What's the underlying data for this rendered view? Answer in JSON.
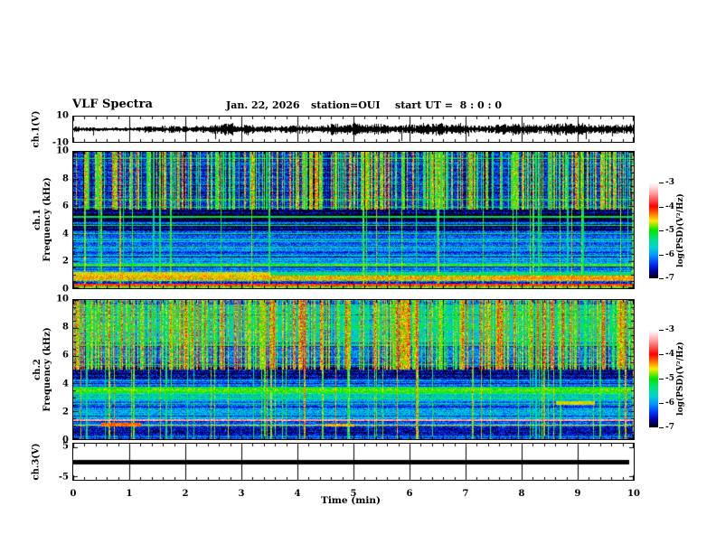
{
  "title": {
    "main": "VLF Spectra",
    "date": "Jan. 22, 2026",
    "station": "station=OUI",
    "start_ut": "start UT =  8 : 0 : 0"
  },
  "axes": {
    "time": {
      "label": "Time (min)",
      "min": 0,
      "max": 10,
      "ticks": [
        "0",
        "1",
        "2",
        "3",
        "4",
        "5",
        "6",
        "7",
        "8",
        "9",
        "10"
      ],
      "minor_per_major": 5
    },
    "ch1v": {
      "label": "ch.1(V)",
      "tick_top": "10",
      "tick_bottom": "-10",
      "range": [
        -10,
        10
      ]
    },
    "ch1f": {
      "label_ch": "ch.1",
      "label_freq": "Frequency (kHz)",
      "ticks": [
        "10",
        "8",
        "6",
        "4",
        "2",
        "0"
      ],
      "range_khz": [
        0,
        10
      ]
    },
    "ch2f": {
      "label_ch": "ch.2",
      "label_freq": "Frequency (kHz)",
      "ticks": [
        "10",
        "8",
        "6",
        "4",
        "2",
        "0"
      ],
      "range_khz": [
        0,
        10
      ]
    },
    "ch3v": {
      "label": "ch.3(V)",
      "tick_top": "5",
      "tick_bottom": "-5",
      "range": [
        -5,
        5
      ]
    }
  },
  "colormap": {
    "label": "log(PSD)(V²/Hz)",
    "ticks": [
      "-3",
      "-4",
      "-5",
      "-6",
      "-7"
    ],
    "value_range": [
      -7,
      -3
    ],
    "stops": [
      [
        0,
        "#ffffff"
      ],
      [
        0.05,
        "#ffdcdc"
      ],
      [
        0.12,
        "#ff9696"
      ],
      [
        0.25,
        "#ff0000"
      ],
      [
        0.33,
        "#ff7800"
      ],
      [
        0.4,
        "#ffeb00"
      ],
      [
        0.5,
        "#00e600"
      ],
      [
        0.6,
        "#00e18c"
      ],
      [
        0.68,
        "#00d2d2"
      ],
      [
        0.76,
        "#0096ff"
      ],
      [
        0.84,
        "#003cff"
      ],
      [
        0.92,
        "#0000aa"
      ],
      [
        1,
        "#000000"
      ]
    ]
  },
  "chart_data": [
    {
      "name": "ch1_waveform",
      "type": "line",
      "x_range_min": [
        0,
        10
      ],
      "y_range_V": [
        -10,
        10
      ],
      "baseline_V": 0,
      "noise_amp_V": 2.2,
      "seed": 77,
      "spikes": [
        {
          "t": 0.35,
          "v": -5
        },
        {
          "t": 2.53,
          "v": -8
        },
        {
          "t": 3.12,
          "v": -5
        },
        {
          "t": 5.43,
          "v": 4.5
        },
        {
          "t": 5.85,
          "v": -9
        },
        {
          "t": 7.05,
          "v": -6
        },
        {
          "t": 9.15,
          "v": -8
        },
        {
          "t": 9.62,
          "v": -6
        }
      ]
    },
    {
      "name": "ch1_spectrogram",
      "type": "heatmap",
      "x_range_min": [
        0,
        10
      ],
      "f_range_khz": [
        0,
        10
      ],
      "z_range_logpsd": [
        -7,
        -3
      ],
      "seed": 12345,
      "speckle": 0.8,
      "row_jitter": 0.5,
      "streaks": {
        "density": 0.45,
        "full_prob": 0.16,
        "level": -5.0,
        "f_min_khz": 5.8
      },
      "bands": [
        {
          "f0": 0.0,
          "f1": 0.15,
          "v": -5.2
        },
        {
          "f0": 0.15,
          "f1": 0.3,
          "v": -4.0
        },
        {
          "f0": 0.3,
          "f1": 0.55,
          "v": -6.3
        },
        {
          "f0": 0.55,
          "f1": 0.95,
          "v": -4.7
        },
        {
          "f0": 0.95,
          "f1": 1.25,
          "v": -5.0
        },
        {
          "f0": 1.25,
          "f1": 1.6,
          "v": -6.2
        },
        {
          "f0": 1.6,
          "f1": 1.85,
          "v": -5.2
        },
        {
          "f0": 1.85,
          "f1": 2.3,
          "v": -5.9
        },
        {
          "f0": 2.3,
          "f1": 3.4,
          "v": -6.1
        },
        {
          "f0": 3.4,
          "f1": 3.7,
          "v": -5.7
        },
        {
          "f0": 3.7,
          "f1": 4.3,
          "v": -6.3
        },
        {
          "f0": 4.3,
          "f1": 4.6,
          "v": -6.8
        },
        {
          "f0": 4.6,
          "f1": 4.85,
          "v": -6.0
        },
        {
          "f0": 4.85,
          "f1": 5.8,
          "v": -6.85
        },
        {
          "f0": 5.8,
          "f1": 6.2,
          "v": -6.4
        },
        {
          "f0": 6.2,
          "f1": 10.01,
          "v": -6.35
        }
      ],
      "h_lines": [
        {
          "f": 9.55,
          "v": -5.4,
          "w": 0.05
        },
        {
          "f": 6.55,
          "v": -5.1,
          "w": 0.05
        },
        {
          "f": 5.95,
          "v": -5.3,
          "w": 0.05
        },
        {
          "f": 5.25,
          "v": -5.2,
          "w": 0.05
        },
        {
          "f": 4.62,
          "v": -5.0,
          "w": 0.05
        },
        {
          "f": 4.05,
          "v": -5.3,
          "w": 0.05
        },
        {
          "f": 3.05,
          "v": -5.4,
          "w": 0.05
        },
        {
          "f": 2.45,
          "v": -5.5,
          "w": 0.05
        },
        {
          "f": 1.72,
          "v": -4.9,
          "w": 0.06
        },
        {
          "f": 0.75,
          "v": -4.4,
          "w": 0.08
        },
        {
          "f": 0.33,
          "v": -3.9,
          "w": 0.06
        },
        {
          "f": 0.08,
          "v": -4.9,
          "w": 0.06
        }
      ],
      "blobs": [
        {
          "x0": 0.0,
          "x1": 0.35,
          "f0": 0.9,
          "f1": 1.25,
          "v": -4.6
        },
        {
          "x0": 0.75,
          "x1": 1.0,
          "f0": 0.55,
          "f1": 0.95,
          "v": -4.5
        }
      ]
    },
    {
      "name": "ch2_spectrogram",
      "type": "heatmap",
      "x_range_min": [
        0,
        10
      ],
      "f_range_khz": [
        0,
        10
      ],
      "z_range_logpsd": [
        -7,
        -3
      ],
      "seed": 98765,
      "speckle": 0.8,
      "row_jitter": 0.45,
      "streaks": {
        "density": 0.5,
        "full_prob": 0.2,
        "level": -4.8,
        "f_min_khz": 5.0
      },
      "bands": [
        {
          "f0": 0.0,
          "f1": 0.35,
          "v": -6.4
        },
        {
          "f0": 0.35,
          "f1": 0.9,
          "v": -6.6
        },
        {
          "f0": 0.9,
          "f1": 1.3,
          "v": -6.2
        },
        {
          "f0": 1.3,
          "f1": 1.45,
          "v": -3.6
        },
        {
          "f0": 1.45,
          "f1": 1.6,
          "v": -5.8
        },
        {
          "f0": 1.6,
          "f1": 2.1,
          "v": -5.9
        },
        {
          "f0": 2.1,
          "f1": 2.9,
          "v": -6.0
        },
        {
          "f0": 2.9,
          "f1": 3.3,
          "v": -5.5
        },
        {
          "f0": 3.3,
          "f1": 3.8,
          "v": -5.0
        },
        {
          "f0": 3.8,
          "f1": 4.4,
          "v": -6.2
        },
        {
          "f0": 4.4,
          "f1": 5.2,
          "v": -6.7
        },
        {
          "f0": 5.2,
          "f1": 5.6,
          "v": -6.3
        },
        {
          "f0": 5.6,
          "f1": 7.0,
          "v": -6.0
        },
        {
          "f0": 7.0,
          "f1": 9.5,
          "v": -5.5
        },
        {
          "f0": 9.5,
          "f1": 10.01,
          "v": -5.9
        }
      ],
      "h_lines": [
        {
          "f": 9.6,
          "v": -5.2,
          "w": 0.05
        },
        {
          "f": 6.8,
          "v": -5.3,
          "w": 0.05
        },
        {
          "f": 5.4,
          "v": -5.2,
          "w": 0.05
        },
        {
          "f": 3.55,
          "v": -4.9,
          "w": 0.07
        },
        {
          "f": 2.6,
          "v": -5.3,
          "w": 0.06
        },
        {
          "f": 1.38,
          "v": -3.5,
          "w": 0.05
        },
        {
          "f": 1.05,
          "v": -4.6,
          "w": 0.05
        },
        {
          "f": 0.2,
          "v": -6.0,
          "w": 0.05
        }
      ],
      "blobs": [
        {
          "x0": 0.05,
          "x1": 0.12,
          "f0": 0.95,
          "f1": 1.2,
          "v": -4.3
        },
        {
          "x0": 0.45,
          "x1": 0.5,
          "f0": 0.95,
          "f1": 1.15,
          "v": -4.5
        },
        {
          "x0": 0.86,
          "x1": 0.93,
          "f0": 2.5,
          "f1": 2.75,
          "v": -4.6
        }
      ]
    },
    {
      "name": "ch3_waveform",
      "type": "line",
      "x_range_min": [
        0,
        10
      ],
      "y_range_V": [
        -5,
        5
      ],
      "constant_value_V": 0,
      "bar_thickness_px": 5,
      "x_end_frac": 0.992
    }
  ]
}
